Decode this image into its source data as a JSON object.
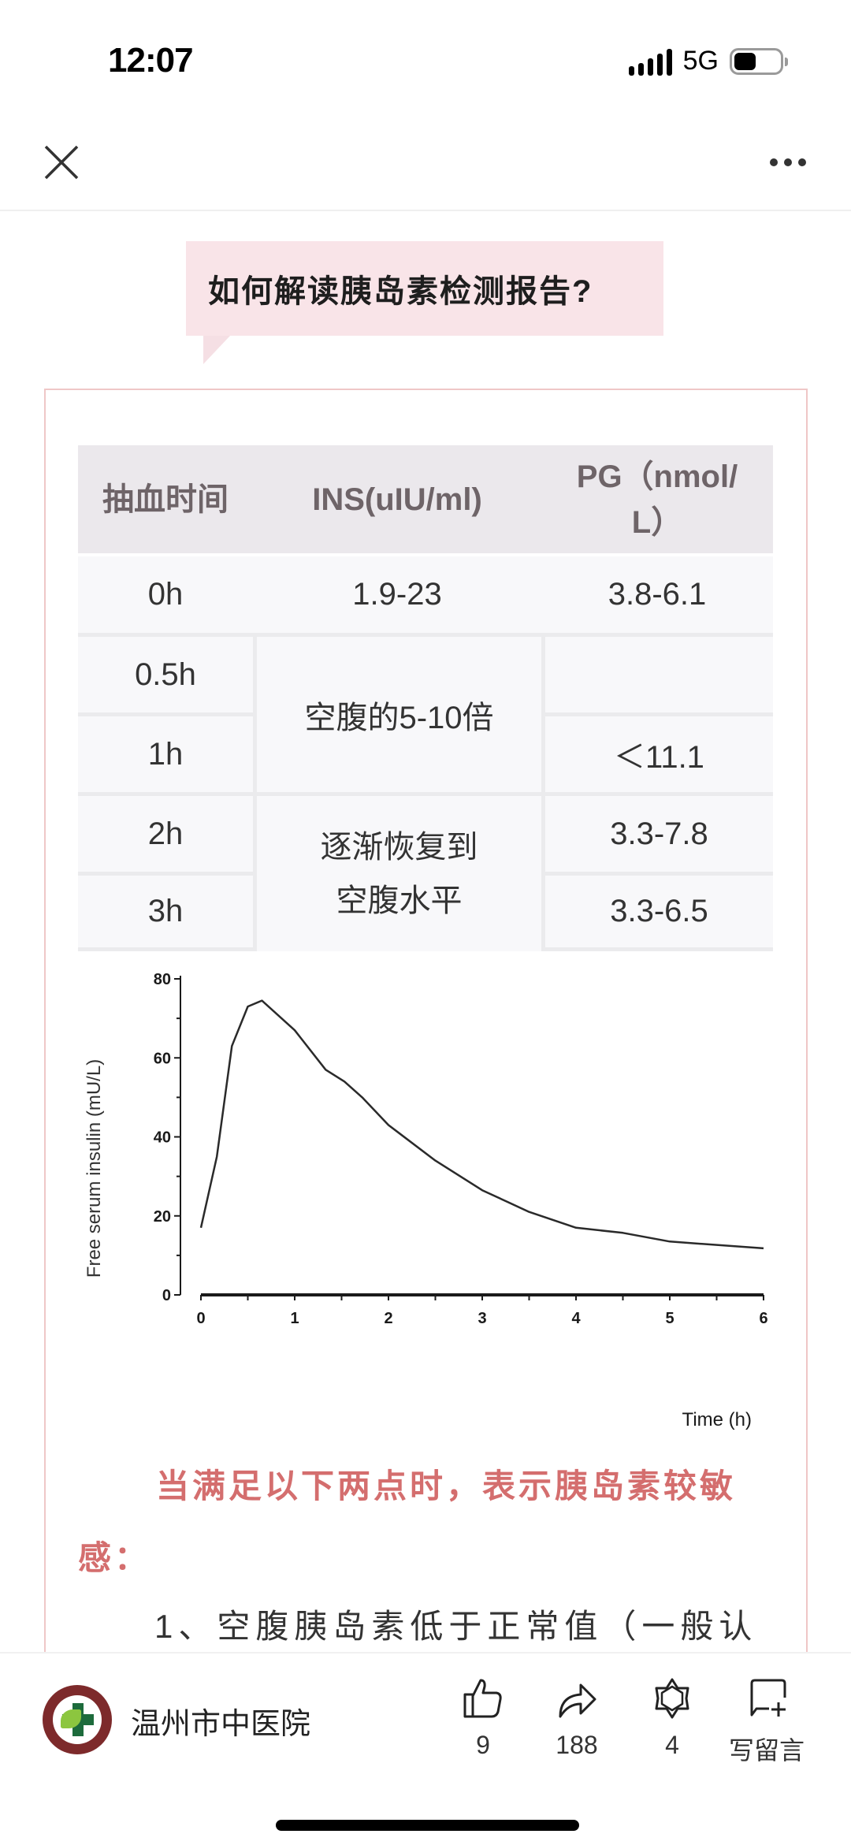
{
  "status_bar": {
    "time": "12:07",
    "network": "5G",
    "icons": [
      "signal-icon",
      "battery-icon"
    ]
  },
  "nav_bar": {
    "close_icon": "close-icon",
    "more_icon": "more-icon"
  },
  "article": {
    "section_title": "如何解读胰岛素检测报告?",
    "table": {
      "headers": [
        "抽血时间",
        "INS(uIU/ml)",
        "PG（nmol/L）"
      ],
      "header_pg_line1": "PG（nmol/",
      "header_pg_line2": "L）",
      "rows": [
        {
          "time": "0h",
          "ins": "1.9-23",
          "pg": "3.8-6.1"
        },
        {
          "time": "0.5h",
          "ins": "空腹的5-10倍",
          "pg": ""
        },
        {
          "time": "1h",
          "ins": "空腹的5-10倍",
          "pg": "＜11.1"
        },
        {
          "time": "2h",
          "ins": "逐渐恢复到空腹水平",
          "pg": "3.3-7.8"
        },
        {
          "time": "3h",
          "ins": "逐渐恢复到空腹水平",
          "pg": "3.3-6.5"
        }
      ],
      "merged_ins_1": "空腹的5-10倍",
      "merged_ins_2_line1": "逐渐恢复到",
      "merged_ins_2_line2": "空腹水平"
    },
    "highlight_text_line1": "当满足以下两点时，表示胰岛素较敏",
    "highlight_text_line2": "感：",
    "body_text": "1、空腹胰岛素低于正常值（一般认"
  },
  "chart_data": {
    "type": "line",
    "title": "",
    "xlabel": "Time (h)",
    "ylabel": "Free serum insulin (mU/L)",
    "xlim": [
      0,
      6
    ],
    "ylim": [
      0,
      80
    ],
    "x_ticks": [
      "0",
      "1",
      "2",
      "3",
      "4",
      "5",
      "6"
    ],
    "y_ticks": [
      "0",
      "20",
      "40",
      "60",
      "80"
    ],
    "grid": false,
    "legend": null,
    "series": [
      {
        "name": "Free serum insulin",
        "x": [
          0,
          0.17,
          0.33,
          0.5,
          0.65,
          1.0,
          1.33,
          1.53,
          1.72,
          2.0,
          2.5,
          3.0,
          3.5,
          4.0,
          4.5,
          5.0,
          6.0
        ],
        "values": [
          17,
          35,
          63,
          73,
          74.5,
          67,
          57,
          54,
          50,
          43,
          34,
          26.5,
          21,
          17,
          15.7,
          13.5,
          11.8
        ]
      }
    ]
  },
  "bottom_bar": {
    "account_name": "温州市中医院",
    "like_count": "9",
    "share_count": "188",
    "wow_count": "4",
    "comment_label": "写留言"
  }
}
